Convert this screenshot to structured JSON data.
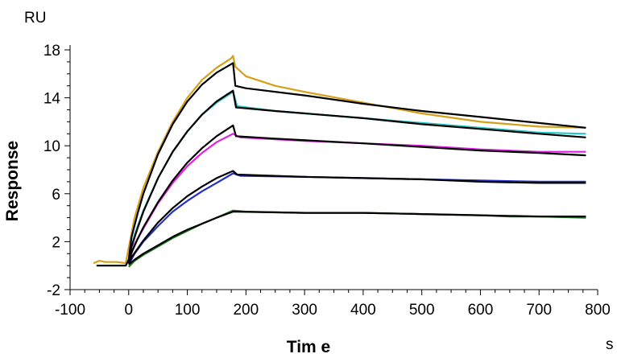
{
  "chart_data": {
    "type": "line",
    "title": "",
    "xlabel": "Tim e",
    "ylabel": "Response",
    "y_unit": "RU",
    "x_unit": "s",
    "xlim": [
      -100,
      800
    ],
    "ylim": [
      -2,
      18
    ],
    "xticks": [
      -100,
      0,
      100,
      200,
      300,
      400,
      500,
      600,
      700,
      800
    ],
    "xtick_labels": [
      "-100",
      "0",
      "100",
      "200",
      "300",
      "400",
      "500",
      "600",
      "700",
      "800"
    ],
    "yticks": [
      -2,
      2,
      6,
      10,
      14,
      18
    ],
    "ytick_labels": [
      "-2",
      "2",
      "6",
      "10",
      "14",
      "18"
    ],
    "grid": false,
    "legend": "none",
    "fit_color": "#000000",
    "series": [
      {
        "color": "#d4a017",
        "points": [
          [
            -60,
            0.2
          ],
          [
            -50,
            0.4
          ],
          [
            -40,
            0.3
          ],
          [
            -20,
            0.3
          ],
          [
            -5,
            0.2
          ],
          [
            0,
            1.5
          ],
          [
            10,
            4.0
          ],
          [
            25,
            6.5
          ],
          [
            50,
            9.5
          ],
          [
            75,
            12.0
          ],
          [
            100,
            14.0
          ],
          [
            125,
            15.5
          ],
          [
            150,
            16.5
          ],
          [
            175,
            17.3
          ],
          [
            178,
            17.5
          ],
          [
            182,
            16.6
          ],
          [
            200,
            15.8
          ],
          [
            250,
            15.0
          ],
          [
            300,
            14.5
          ],
          [
            400,
            13.6
          ],
          [
            500,
            12.7
          ],
          [
            600,
            12.0
          ],
          [
            700,
            11.6
          ],
          [
            780,
            11.5
          ]
        ]
      },
      {
        "color": "#1fc8c8",
        "points": [
          [
            0,
            0.5
          ],
          [
            10,
            2.6
          ],
          [
            25,
            4.6
          ],
          [
            50,
            7.3
          ],
          [
            75,
            9.5
          ],
          [
            100,
            11.2
          ],
          [
            125,
            12.6
          ],
          [
            150,
            13.6
          ],
          [
            178,
            14.5
          ],
          [
            185,
            13.3
          ],
          [
            250,
            12.9
          ],
          [
            400,
            12.3
          ],
          [
            500,
            11.9
          ],
          [
            600,
            11.5
          ],
          [
            700,
            11.1
          ],
          [
            780,
            11.0
          ]
        ]
      },
      {
        "color": "#e020e0",
        "points": [
          [
            0,
            0.3
          ],
          [
            10,
            1.8
          ],
          [
            25,
            3.1
          ],
          [
            50,
            5.2
          ],
          [
            75,
            6.9
          ],
          [
            100,
            8.3
          ],
          [
            125,
            9.4
          ],
          [
            150,
            10.3
          ],
          [
            178,
            11.0
          ],
          [
            190,
            10.7
          ],
          [
            300,
            10.4
          ],
          [
            400,
            10.2
          ],
          [
            500,
            10.0
          ],
          [
            600,
            9.7
          ],
          [
            700,
            9.5
          ],
          [
            780,
            9.5
          ]
        ]
      },
      {
        "color": "#2030c0",
        "points": [
          [
            0,
            0.1
          ],
          [
            10,
            1.0
          ],
          [
            25,
            2.0
          ],
          [
            50,
            3.3
          ],
          [
            75,
            4.5
          ],
          [
            100,
            5.4
          ],
          [
            125,
            6.2
          ],
          [
            150,
            6.9
          ],
          [
            178,
            7.7
          ],
          [
            190,
            7.5
          ],
          [
            300,
            7.4
          ],
          [
            400,
            7.3
          ],
          [
            500,
            7.2
          ],
          [
            600,
            7.1
          ],
          [
            700,
            7.0
          ],
          [
            780,
            7.0
          ]
        ]
      },
      {
        "color": "#1e7a1e",
        "points": [
          [
            0,
            -0.1
          ],
          [
            10,
            0.4
          ],
          [
            25,
            0.9
          ],
          [
            50,
            1.6
          ],
          [
            75,
            2.3
          ],
          [
            100,
            2.9
          ],
          [
            125,
            3.5
          ],
          [
            150,
            4.0
          ],
          [
            178,
            4.6
          ],
          [
            200,
            4.5
          ],
          [
            300,
            4.4
          ],
          [
            400,
            4.4
          ],
          [
            500,
            4.3
          ],
          [
            600,
            4.2
          ],
          [
            650,
            4.1
          ],
          [
            700,
            4.1
          ],
          [
            780,
            4.0
          ]
        ]
      }
    ],
    "fits": [
      {
        "points": [
          [
            -55,
            0
          ],
          [
            -5,
            0
          ],
          [
            0,
            0.5
          ],
          [
            5,
            2.4
          ],
          [
            15,
            4.3
          ],
          [
            25,
            6.0
          ],
          [
            50,
            9.3
          ],
          [
            75,
            11.8
          ],
          [
            100,
            13.7
          ],
          [
            125,
            15.1
          ],
          [
            150,
            16.1
          ],
          [
            178,
            16.9
          ],
          [
            182,
            15.0
          ],
          [
            200,
            14.8
          ],
          [
            300,
            14.2
          ],
          [
            400,
            13.5
          ],
          [
            500,
            12.9
          ],
          [
            600,
            12.4
          ],
          [
            700,
            11.9
          ],
          [
            780,
            11.5
          ]
        ]
      },
      {
        "points": [
          [
            0,
            0.4
          ],
          [
            5,
            1.6
          ],
          [
            15,
            3.1
          ],
          [
            25,
            4.5
          ],
          [
            50,
            7.3
          ],
          [
            75,
            9.5
          ],
          [
            100,
            11.2
          ],
          [
            125,
            12.6
          ],
          [
            150,
            13.7
          ],
          [
            178,
            14.6
          ],
          [
            183,
            13.2
          ],
          [
            250,
            12.9
          ],
          [
            400,
            12.3
          ],
          [
            500,
            11.8
          ],
          [
            600,
            11.4
          ],
          [
            700,
            11.0
          ],
          [
            780,
            10.7
          ]
        ]
      },
      {
        "points": [
          [
            0,
            0.3
          ],
          [
            5,
            1.1
          ],
          [
            15,
            2.2
          ],
          [
            25,
            3.2
          ],
          [
            50,
            5.3
          ],
          [
            75,
            7.1
          ],
          [
            100,
            8.6
          ],
          [
            125,
            9.8
          ],
          [
            150,
            10.8
          ],
          [
            178,
            11.7
          ],
          [
            183,
            10.8
          ],
          [
            250,
            10.6
          ],
          [
            400,
            10.2
          ],
          [
            500,
            9.9
          ],
          [
            600,
            9.6
          ],
          [
            700,
            9.4
          ],
          [
            780,
            9.2
          ]
        ]
      },
      {
        "points": [
          [
            0,
            0.2
          ],
          [
            5,
            0.7
          ],
          [
            15,
            1.4
          ],
          [
            25,
            2.1
          ],
          [
            50,
            3.6
          ],
          [
            75,
            4.8
          ],
          [
            100,
            5.8
          ],
          [
            125,
            6.6
          ],
          [
            150,
            7.3
          ],
          [
            178,
            7.9
          ],
          [
            185,
            7.6
          ],
          [
            300,
            7.4
          ],
          [
            400,
            7.3
          ],
          [
            500,
            7.2
          ],
          [
            600,
            7.0
          ],
          [
            700,
            6.9
          ],
          [
            780,
            6.9
          ]
        ]
      },
      {
        "points": [
          [
            0,
            0.1
          ],
          [
            10,
            0.5
          ],
          [
            25,
            1.0
          ],
          [
            50,
            1.7
          ],
          [
            75,
            2.4
          ],
          [
            100,
            3.0
          ],
          [
            125,
            3.5
          ],
          [
            150,
            4.0
          ],
          [
            178,
            4.5
          ],
          [
            185,
            4.5
          ],
          [
            300,
            4.4
          ],
          [
            400,
            4.4
          ],
          [
            500,
            4.3
          ],
          [
            600,
            4.2
          ],
          [
            700,
            4.1
          ],
          [
            780,
            4.1
          ]
        ]
      }
    ]
  }
}
